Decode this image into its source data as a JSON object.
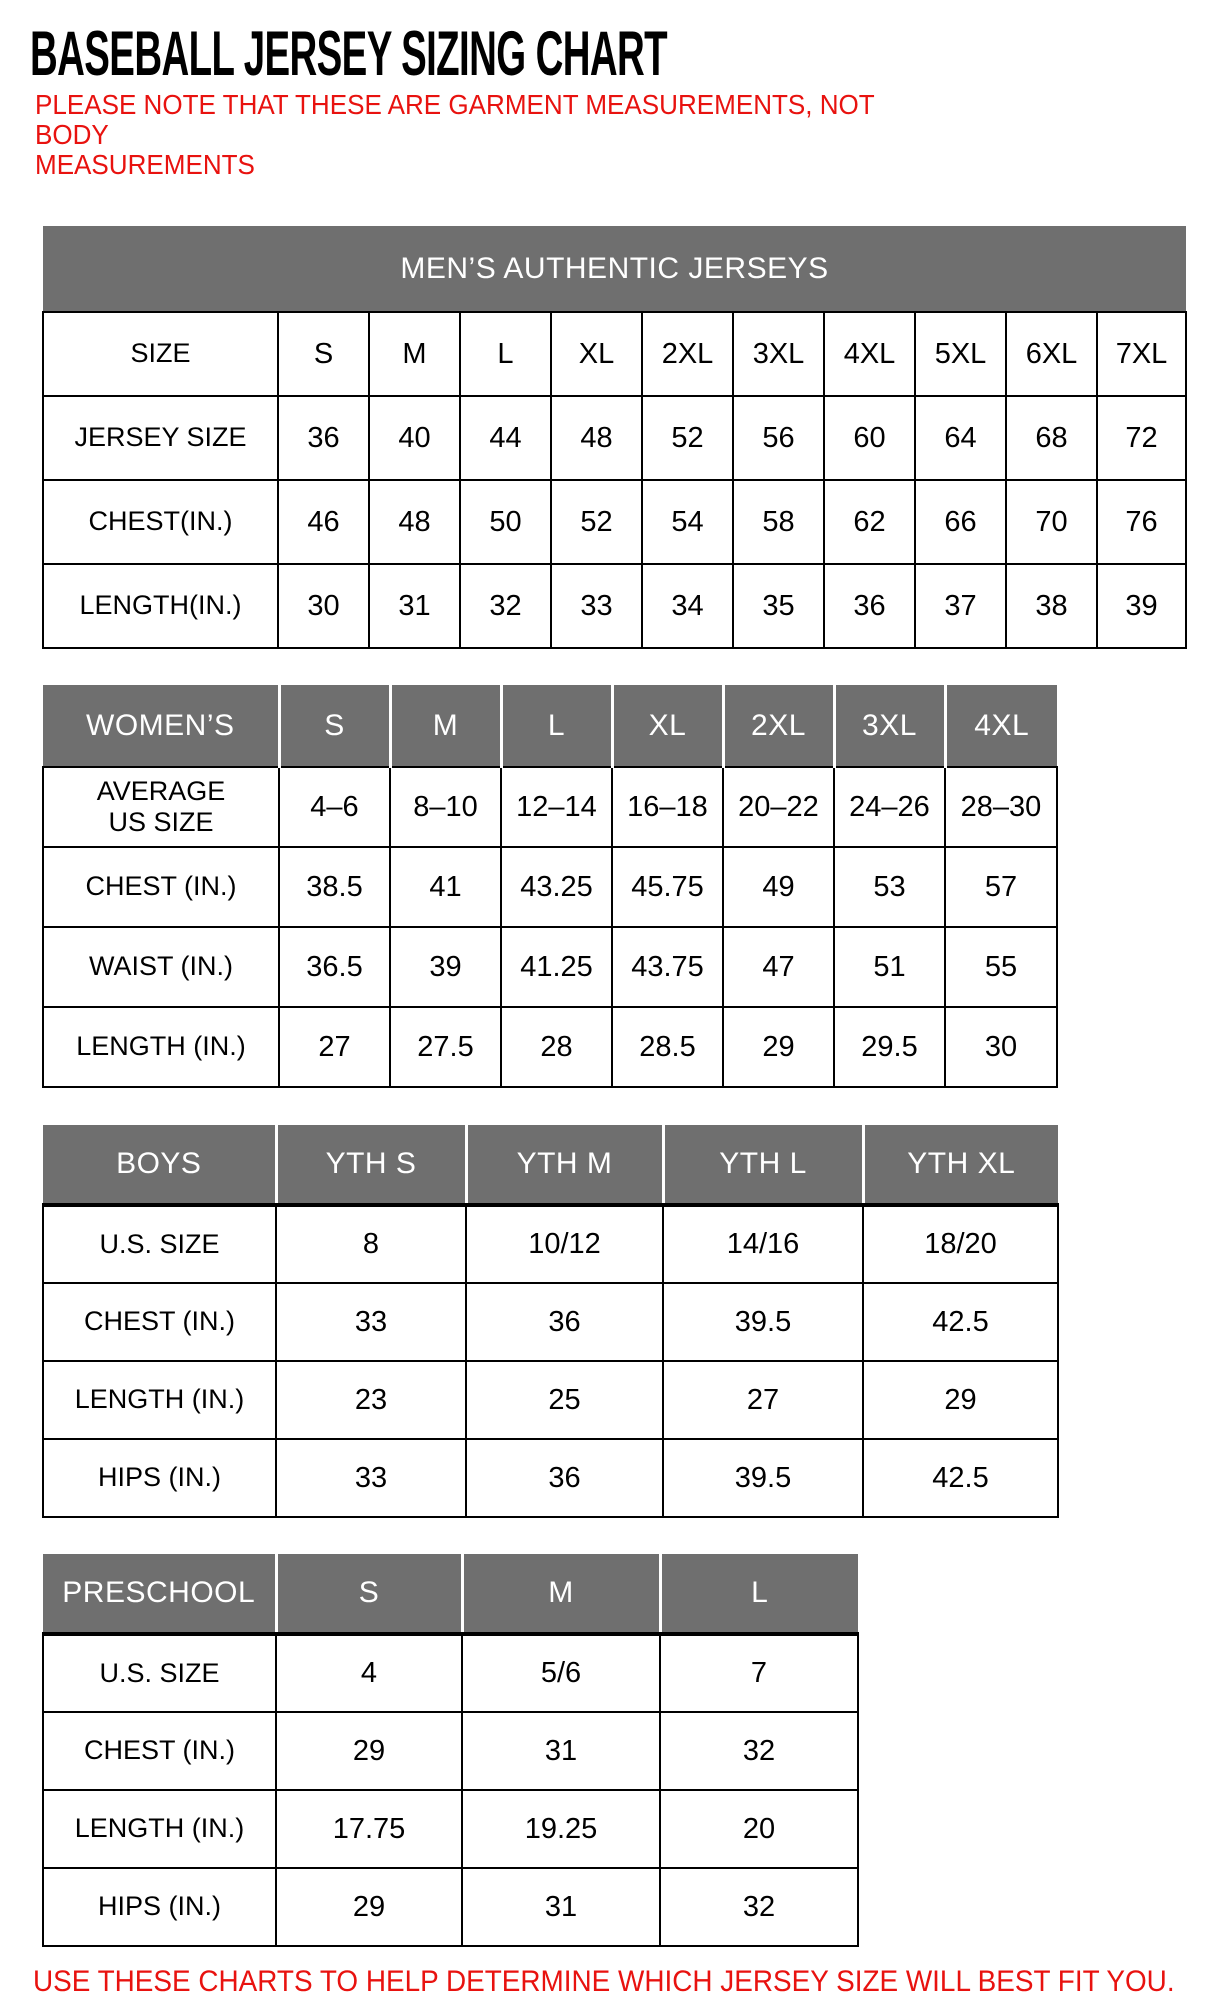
{
  "page": {
    "title": "BASEBALL JERSEY SIZING CHART",
    "note": "PLEASE NOTE THAT THESE ARE GARMENT MEASUREMENTS, NOT BODY\nMEASUREMENTS",
    "footer": "USE THESE CHARTS TO HELP DETERMINE WHICH JERSEY SIZE WILL BEST FIT YOU."
  },
  "colors": {
    "header_gray": "#6f6f6f",
    "accent_red": "#e8120f",
    "border_black": "#000000",
    "header_text": "#ffffff",
    "body_text": "#000000"
  },
  "tables": {
    "mens": {
      "banner": "MEN’S AUTHENTIC JERSEYS",
      "rows": [
        {
          "label": "SIZE",
          "values": [
            "S",
            "M",
            "L",
            "XL",
            "2XL",
            "3XL",
            "4XL",
            "5XL",
            "6XL",
            "7XL"
          ]
        },
        {
          "label": "JERSEY SIZE",
          "values": [
            "36",
            "40",
            "44",
            "48",
            "52",
            "56",
            "60",
            "64",
            "68",
            "72"
          ]
        },
        {
          "label": "CHEST(IN.)",
          "values": [
            "46",
            "48",
            "50",
            "52",
            "54",
            "58",
            "62",
            "66",
            "70",
            "76"
          ]
        },
        {
          "label": "LENGTH(IN.)",
          "values": [
            "30",
            "31",
            "32",
            "33",
            "34",
            "35",
            "36",
            "37",
            "38",
            "39"
          ]
        }
      ]
    },
    "womens": {
      "header_label": "WOMEN’S",
      "header_values": [
        "S",
        "M",
        "L",
        "XL",
        "2XL",
        "3XL",
        "4XL"
      ],
      "rows": [
        {
          "label": "AVERAGE\nUS SIZE",
          "values": [
            "4–6",
            "8–10",
            "12–14",
            "16–18",
            "20–22",
            "24–26",
            "28–30"
          ]
        },
        {
          "label": "CHEST (IN.)",
          "values": [
            "38.5",
            "41",
            "43.25",
            "45.75",
            "49",
            "53",
            "57"
          ]
        },
        {
          "label": "WAIST (IN.)",
          "values": [
            "36.5",
            "39",
            "41.25",
            "43.75",
            "47",
            "51",
            "55"
          ]
        },
        {
          "label": "LENGTH (IN.)",
          "values": [
            "27",
            "27.5",
            "28",
            "28.5",
            "29",
            "29.5",
            "30"
          ]
        }
      ]
    },
    "boys": {
      "header_label": "BOYS",
      "header_values": [
        "YTH S",
        "YTH M",
        "YTH L",
        "YTH XL"
      ],
      "rows": [
        {
          "label": "U.S. SIZE",
          "values": [
            "8",
            "10/12",
            "14/16",
            "18/20"
          ]
        },
        {
          "label": "CHEST (IN.)",
          "values": [
            "33",
            "36",
            "39.5",
            "42.5"
          ]
        },
        {
          "label": "LENGTH (IN.)",
          "values": [
            "23",
            "25",
            "27",
            "29"
          ]
        },
        {
          "label": "HIPS (IN.)",
          "values": [
            "33",
            "36",
            "39.5",
            "42.5"
          ]
        }
      ]
    },
    "preschool": {
      "header_label": "PRESCHOOL",
      "header_values": [
        "S",
        "M",
        "L"
      ],
      "rows": [
        {
          "label": "U.S. SIZE",
          "values": [
            "4",
            "5/6",
            "7"
          ]
        },
        {
          "label": "CHEST (IN.)",
          "values": [
            "29",
            "31",
            "32"
          ]
        },
        {
          "label": "LENGTH (IN.)",
          "values": [
            "17.75",
            "19.25",
            "20"
          ]
        },
        {
          "label": "HIPS (IN.)",
          "values": [
            "29",
            "31",
            "32"
          ]
        }
      ]
    }
  }
}
